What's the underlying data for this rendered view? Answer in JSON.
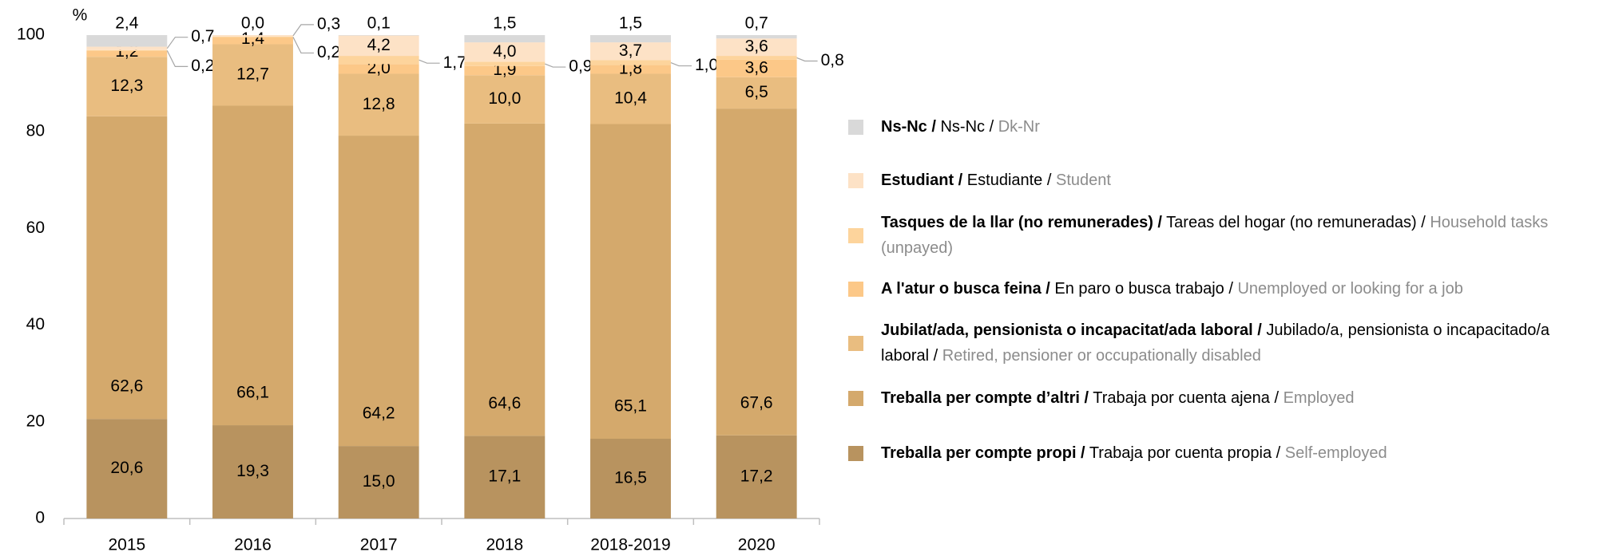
{
  "chart_data": {
    "type": "stacked_bar",
    "y_label": "%",
    "categories": [
      "2015",
      "2016",
      "2017",
      "2018",
      "2018-2019",
      "2020"
    ],
    "ylim": [
      0,
      100
    ],
    "yticks": [
      0,
      20,
      40,
      60,
      80,
      100
    ],
    "grid": false,
    "legend_position": "right",
    "series": [
      {
        "name": "Treballa per compte propi /",
        "name_es": "Trabaja por cuenta propia /",
        "name_en": "Self-employed",
        "color": "#b8935f",
        "values": [
          20.6,
          19.3,
          15.0,
          17.1,
          16.5,
          17.2
        ],
        "value_labels": [
          "20,6",
          "19,3",
          "15,0",
          "17,1",
          "16,5",
          "17,2"
        ]
      },
      {
        "name": "Treballa per compte d’altri /",
        "name_es": "Trabaja por cuenta ajena /",
        "name_en": "Employed",
        "color": "#d4a96c",
        "values": [
          62.6,
          66.1,
          64.2,
          64.6,
          65.1,
          67.6
        ],
        "value_labels": [
          "62,6",
          "66,1",
          "64,2",
          "64,6",
          "65,1",
          "67,6"
        ]
      },
      {
        "name": "Jubilat/ada, pensionista o incapacitat/ada laboral /",
        "name_es": "Jubilado/a, pensionista o incapacitado/a laboral /",
        "name_en": "Retired, pensioner or occupationally disabled",
        "color": "#e9bd80",
        "values": [
          12.3,
          12.7,
          12.8,
          10.0,
          10.4,
          6.5
        ],
        "value_labels": [
          "12,3",
          "12,7",
          "12,8",
          "10,0",
          "10,4",
          "6,5"
        ]
      },
      {
        "name": "A l'atur o busca feina /",
        "name_es": "En paro o busca trabajo /",
        "name_en": "Unemployed or looking for a job",
        "color": "#fcc888",
        "values": [
          1.2,
          1.4,
          2.0,
          1.9,
          1.8,
          3.6
        ],
        "value_labels": [
          "1,2",
          "1,4",
          "2,0",
          "1,9",
          "1,8",
          "3,6"
        ]
      },
      {
        "name": "Tasques de la llar (no remunerades) /",
        "name_es": "Tareas del hogar (no remuneradas) /",
        "name_en": "Household tasks (unpayed)",
        "color": "#fdd49c",
        "values": [
          0.2,
          0.2,
          1.7,
          0.9,
          1.0,
          0.8
        ],
        "value_labels": [
          "0,2",
          "0,2",
          "1,7",
          "0,9",
          "1,0",
          "0,8"
        ]
      },
      {
        "name": "Estudiant /",
        "name_es": "Estudiante /",
        "name_en": "Student",
        "color": "#fde2c6",
        "values": [
          0.7,
          0.3,
          4.2,
          4.0,
          3.7,
          3.6
        ],
        "value_labels": [
          "0,7",
          "0,3",
          "4,2",
          "4,0",
          "3,7",
          "3,6"
        ]
      },
      {
        "name": "Ns-Nc /",
        "name_es": "Ns-Nc /",
        "name_en": "Dk-Nr",
        "color": "#d9d9d9",
        "values": [
          2.4,
          0.0,
          0.1,
          1.5,
          1.5,
          0.7
        ],
        "value_labels": [
          "2,4",
          "0,0",
          "0,1",
          "1,5",
          "1,5",
          "0,7"
        ]
      }
    ]
  }
}
